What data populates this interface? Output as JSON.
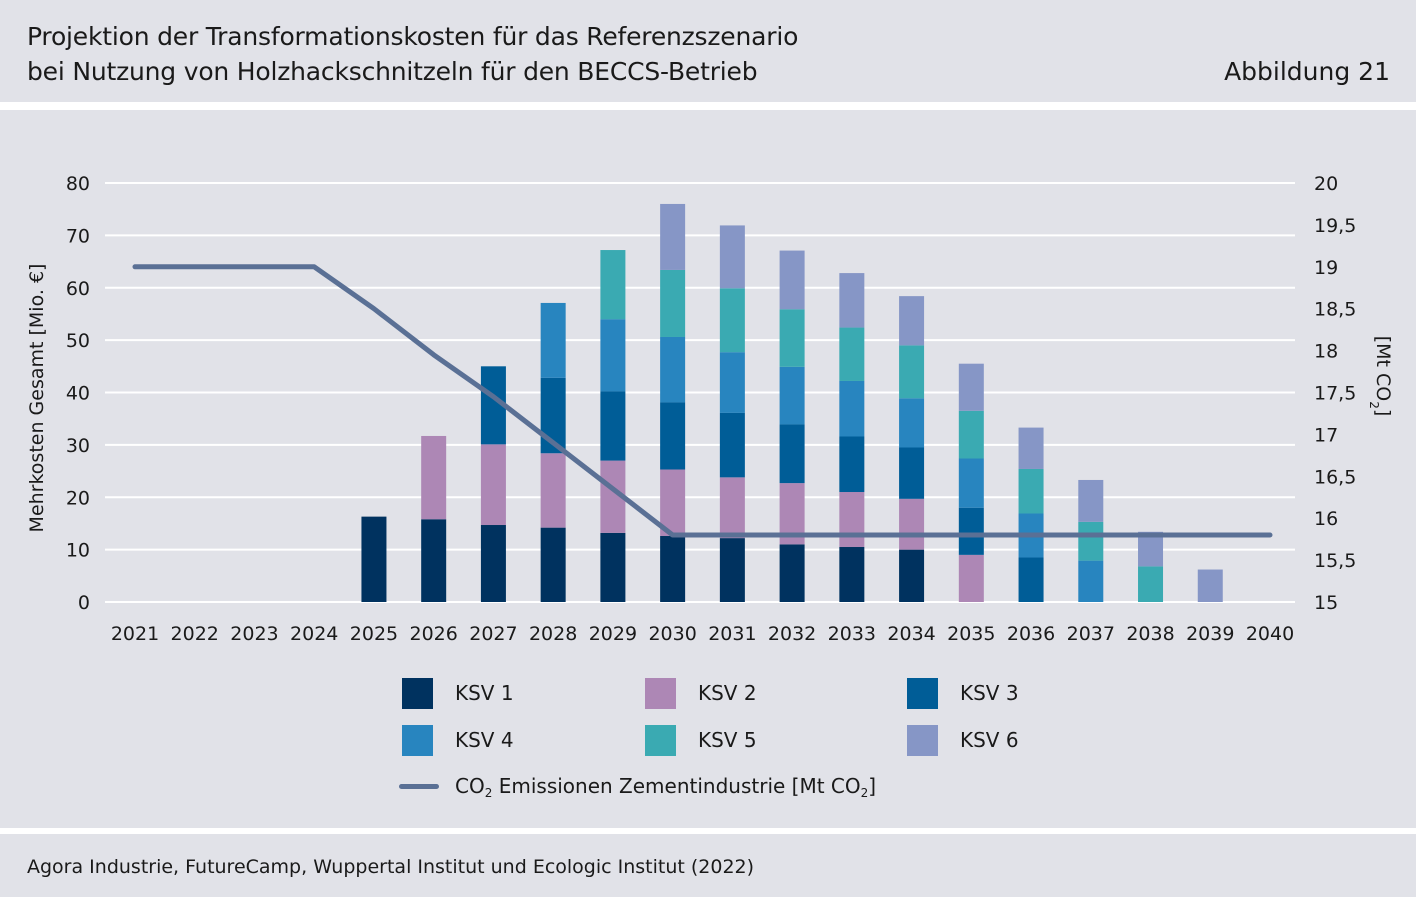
{
  "header": {
    "title_line1": "Projektion der Transformationskosten für das Referenzszenario",
    "title_line2": "bei Nutzung von Holzhackschnitzeln für den BECCS-Betrieb",
    "figure_label": "Abbildung 21"
  },
  "footer": {
    "source": "Agora Industrie, FutureCamp, Wuppertal Institut und Ecologic Institut (2022)"
  },
  "chart_data": {
    "type": "bar",
    "stacked": true,
    "categories": [
      "2021",
      "2022",
      "2023",
      "2024",
      "2025",
      "2026",
      "2027",
      "2028",
      "2029",
      "2030",
      "2031",
      "2032",
      "2033",
      "2034",
      "2035",
      "2036",
      "2037",
      "2038",
      "2039",
      "2040"
    ],
    "ylabel": "Mehrkosten Gesamt [Mio. €]",
    "ylim": [
      0,
      80
    ],
    "yticks": [
      "0",
      "10",
      "20",
      "30",
      "40",
      "50",
      "60",
      "70",
      "80"
    ],
    "y2label_prefix": "[Mt CO",
    "y2label_sub": "2",
    "y2label_suffix": "]",
    "y2lim": [
      15,
      20
    ],
    "y2ticks": [
      "15",
      "15,5",
      "16",
      "16,5",
      "17",
      "17,5",
      "18",
      "18,5",
      "19",
      "19,5",
      "20"
    ],
    "grid": "horizontal",
    "series": [
      {
        "name": "KSV 1",
        "color": "#00325f",
        "values": [
          0,
          0,
          0,
          0,
          16.3,
          15.8,
          14.7,
          14.2,
          13.2,
          12.6,
          12.2,
          11.0,
          10.5,
          10.0,
          0,
          0,
          0,
          0,
          0,
          0
        ]
      },
      {
        "name": "KSV 2",
        "color": "#ad87b5",
        "values": [
          0,
          0,
          0,
          0,
          0,
          15.9,
          15.4,
          14.2,
          13.8,
          12.7,
          11.6,
          11.7,
          10.5,
          9.7,
          9.0,
          0,
          0,
          0,
          0,
          0
        ]
      },
      {
        "name": "KSV 3",
        "color": "#005d97",
        "values": [
          0,
          0,
          0,
          0,
          0,
          0,
          14.9,
          14.4,
          13.2,
          12.8,
          12.3,
          11.2,
          10.6,
          9.8,
          9.0,
          8.5,
          0,
          0,
          0,
          0
        ]
      },
      {
        "name": "KSV 4",
        "color": "#2885bf",
        "values": [
          0,
          0,
          0,
          0,
          0,
          0,
          0,
          14.3,
          13.8,
          12.5,
          11.6,
          11.0,
          10.6,
          9.4,
          9.4,
          8.4,
          7.9,
          0,
          0,
          0
        ]
      },
      {
        "name": "KSV 5",
        "color": "#3aaab2",
        "values": [
          0,
          0,
          0,
          0,
          0,
          0,
          0,
          0,
          13.2,
          12.8,
          12.2,
          11.0,
          10.2,
          10.1,
          9.1,
          8.5,
          7.4,
          6.8,
          0,
          0
        ]
      },
      {
        "name": "KSV 6",
        "color": "#8696c6",
        "values": [
          0,
          0,
          0,
          0,
          0,
          0,
          0,
          0,
          0,
          12.6,
          12.0,
          11.2,
          10.4,
          9.4,
          9.0,
          7.9,
          8.0,
          6.6,
          6.2,
          0
        ]
      }
    ],
    "line": {
      "name_prefix": "CO",
      "name_sub": "2",
      "name_mid": " Emissionen Zementindustrie [Mt CO",
      "name_sub2": "2",
      "name_suffix": "]",
      "color": "#5a7095",
      "axis": "right",
      "values": [
        19,
        19,
        19,
        19,
        18.5,
        17.95,
        17.45,
        16.9,
        16.35,
        15.8,
        15.8,
        15.8,
        15.8,
        15.8,
        15.8,
        15.8,
        15.8,
        15.8,
        15.8,
        15.8
      ]
    },
    "legend_position": "bottom"
  }
}
